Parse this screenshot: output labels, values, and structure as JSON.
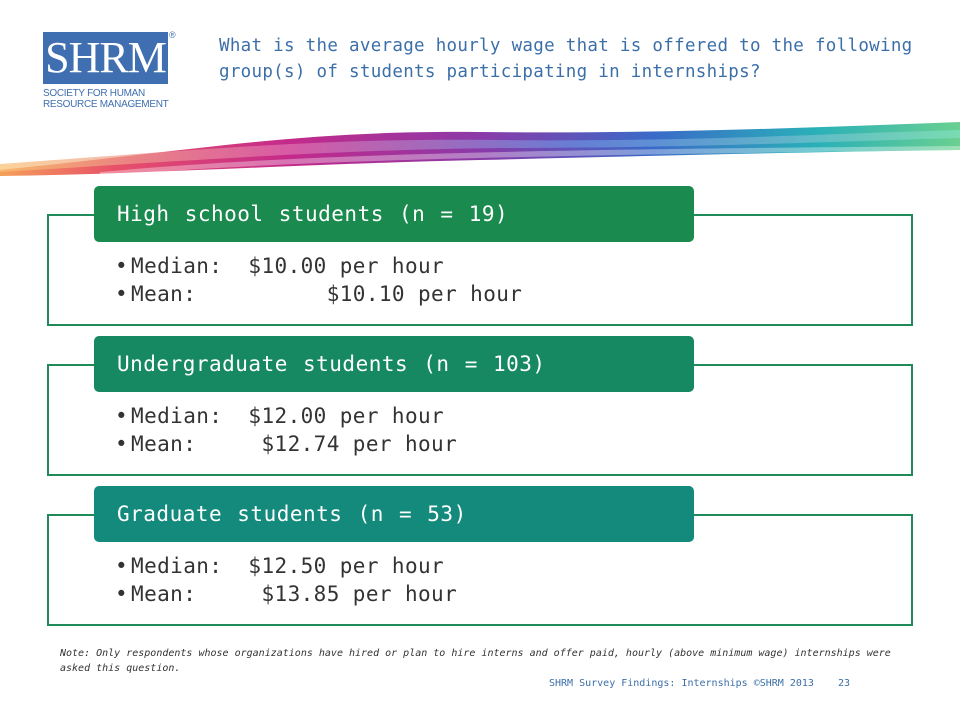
{
  "logo": {
    "mark": "SHRM",
    "registered": "®",
    "line1": "SOCIETY FOR HUMAN",
    "line2": "RESOURCE MANAGEMENT"
  },
  "question": "What is the average hourly wage that is offered to the following group(s) of students participating in internships?",
  "groups": [
    {
      "title": "High school students (n = 19)",
      "median": "Median:  $10.00 per hour",
      "mean": "Mean:          $10.10 per hour",
      "color": "#1a8a4e"
    },
    {
      "title": "Undergraduate students (n = 103)",
      "median": "Median:  $12.00 per hour",
      "mean": "Mean:     $12.74 per hour",
      "color": "#178962"
    },
    {
      "title": "Graduate students (n = 53)",
      "median": "Median:  $12.50 per hour",
      "mean": "Mean:     $13.85 per hour",
      "color": "#138a7c"
    }
  ],
  "note": "Note: Only respondents whose organizations have hired or plan to hire interns and offer paid, hourly (above minimum wage) internships were asked this question.",
  "footer": "SHRM Survey Findings: Internships ©SHRM 2013    23"
}
